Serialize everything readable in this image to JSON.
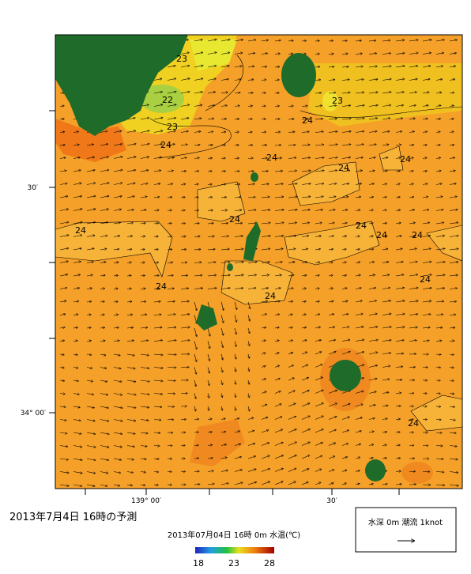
{
  "map": {
    "title": "2013年7月4日 16時の予測",
    "subtitle": "2013年07月04日 16時 0m 水温(℃)",
    "lat_labels": [
      "30′",
      "34° 00′"
    ],
    "lon_labels": [
      "139° 00′",
      "30′"
    ],
    "colorbar_ticks": [
      "18",
      "23",
      "28"
    ],
    "legend": "水深 0m 潮流 1knot",
    "contour_labels": [
      "23",
      "22",
      "23",
      "24",
      "23",
      "24",
      "24",
      "24",
      "24",
      "24",
      "24",
      "24",
      "24",
      "24",
      "24",
      "24",
      "24",
      "24"
    ]
  }
}
